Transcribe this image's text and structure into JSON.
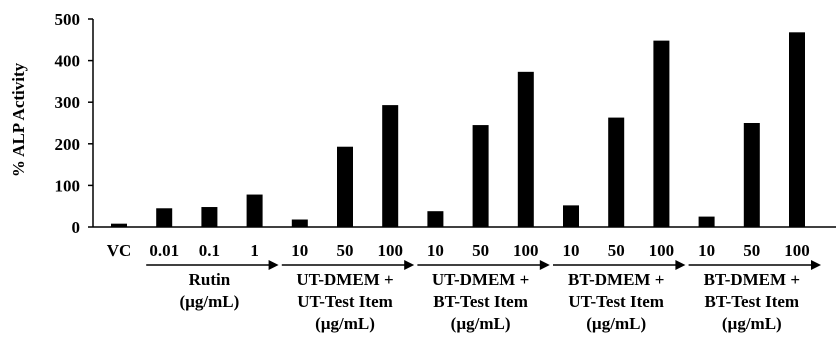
{
  "chart_data": {
    "type": "bar",
    "ylabel": "% ALP Activity",
    "ylim": [
      0,
      500
    ],
    "yticks": [
      0,
      100,
      200,
      300,
      400,
      500
    ],
    "grid": false,
    "bar_color": "#000000",
    "categories": [
      "VC",
      "0.01",
      "0.1",
      "1",
      "10",
      "50",
      "100",
      "10",
      "50",
      "100",
      "10",
      "50",
      "100",
      "10",
      "50",
      "100"
    ],
    "values": [
      8,
      45,
      48,
      78,
      18,
      193,
      293,
      38,
      245,
      373,
      52,
      263,
      448,
      25,
      250,
      468
    ],
    "groups": [
      {
        "lines": [
          "Rutin",
          "(µg/mL)"
        ],
        "start": 1,
        "end": 3
      },
      {
        "lines": [
          "UT-DMEM +",
          "UT-Test Item",
          "(µg/mL)"
        ],
        "start": 4,
        "end": 6
      },
      {
        "lines": [
          "UT-DMEM +",
          "BT-Test Item",
          "(µg/mL)"
        ],
        "start": 7,
        "end": 9
      },
      {
        "lines": [
          "BT-DMEM +",
          "UT-Test Item",
          "(µg/mL)"
        ],
        "start": 10,
        "end": 12
      },
      {
        "lines": [
          "BT-DMEM +",
          "BT-Test Item",
          "(µg/mL)"
        ],
        "start": 13,
        "end": 15
      }
    ]
  }
}
